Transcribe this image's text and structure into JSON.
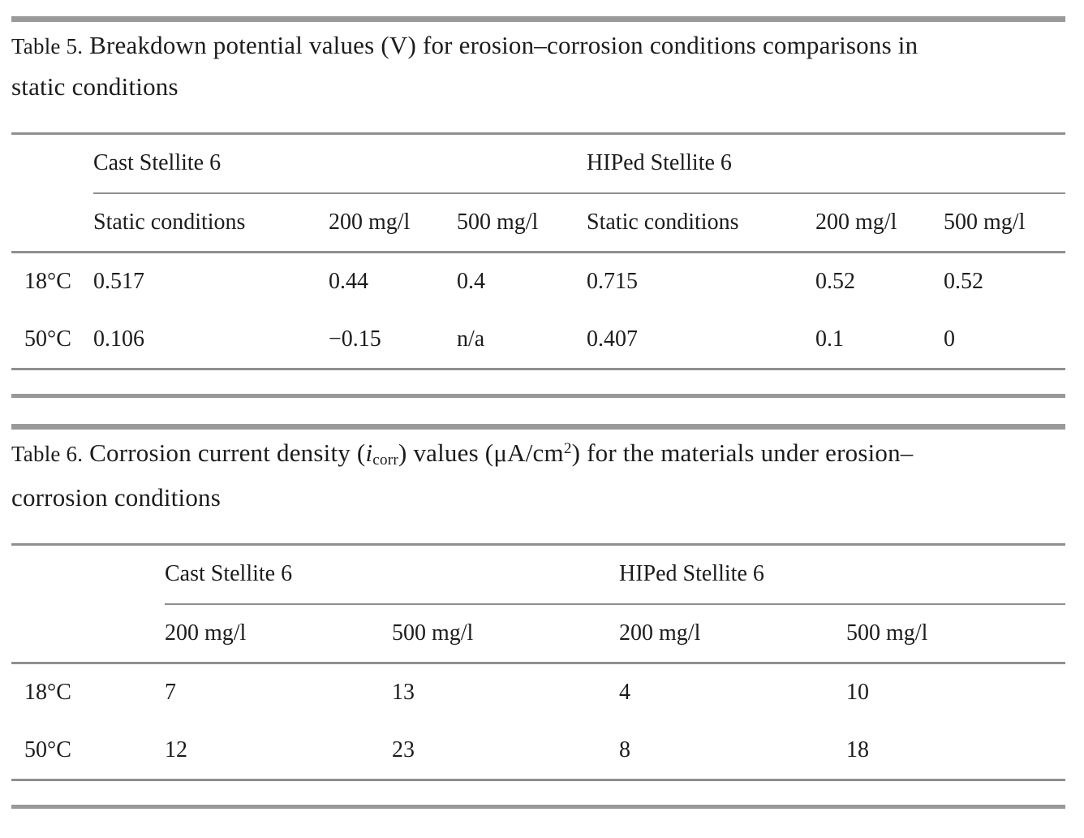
{
  "page": {
    "background": "#ffffff",
    "thick_rule_color": "#999999",
    "thin_rule_color": "#8f8f8f",
    "text_color": "#1c1c1c"
  },
  "table5": {
    "caption_label": "Table 5.",
    "caption_segments": [
      {
        "text": " Breakdown potential values (V) for erosion–corrosion conditions comparisons in"
      },
      {
        "break": true
      },
      {
        "text": "static conditions"
      }
    ],
    "groups": [
      "Cast Stellite 6",
      "HIPed Stellite 6"
    ],
    "columns": [
      "Static conditions",
      "200 mg/l",
      "500 mg/l",
      "Static conditions",
      "200 mg/l",
      "500 mg/l"
    ],
    "rows": [
      {
        "label": "18°C",
        "values": [
          "0.517",
          "0.44",
          "0.4",
          "0.715",
          "0.52",
          "0.52"
        ]
      },
      {
        "label": "50°C",
        "values": [
          "0.106",
          "−0.15",
          "n/a",
          "0.407",
          "0.1",
          "0"
        ]
      }
    ]
  },
  "table6": {
    "caption_label": "Table 6.",
    "caption_segments": [
      {
        "text": " Corrosion current density ("
      },
      {
        "text": "i",
        "style": "italic"
      },
      {
        "text": "corr",
        "style": "sub"
      },
      {
        "text": ") values (μA/cm"
      },
      {
        "text": "2",
        "style": "sup"
      },
      {
        "text": ") for the materials under erosion–"
      },
      {
        "break": true
      },
      {
        "text": "corrosion conditions"
      }
    ],
    "groups": [
      "Cast Stellite 6",
      "HIPed Stellite 6"
    ],
    "columns": [
      "200 mg/l",
      "500 mg/l",
      "200 mg/l",
      "500 mg/l"
    ],
    "rows": [
      {
        "label": "18°C",
        "values": [
          "7",
          "13",
          "4",
          "10"
        ]
      },
      {
        "label": "50°C",
        "values": [
          "12",
          "23",
          "8",
          "18"
        ]
      }
    ]
  }
}
